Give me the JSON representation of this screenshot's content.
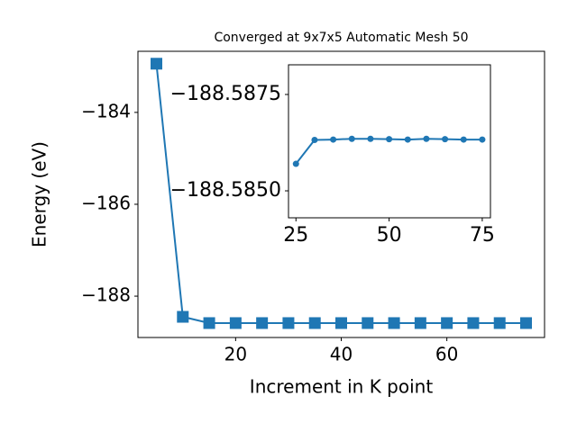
{
  "chart_data": [
    {
      "type": "line",
      "title": "Converged at 9x7x5 Automatic Mesh 50",
      "x_label": "Increment in K point",
      "y_label": "Energy (eV)",
      "marker": "square",
      "series": [
        {
          "color": "#1f77b4",
          "x": [
            5,
            10,
            15,
            20,
            25,
            30,
            35,
            40,
            45,
            50,
            55,
            60,
            65,
            70,
            75
          ],
          "values": [
            -182.94,
            -188.45,
            -188.586,
            -188.586,
            -188.586,
            -188.586,
            -188.586,
            -188.586,
            -188.586,
            -188.586,
            -188.586,
            -188.586,
            -188.586,
            -188.586,
            -188.586
          ]
        }
      ],
      "xlim": [
        1.5,
        78.5
      ],
      "xticks": [
        20,
        40,
        60
      ],
      "ylim": [
        -188.9,
        -182.67
      ],
      "yticks": [
        {
          "value": -188,
          "label": "−188"
        },
        {
          "value": -186,
          "label": "−186"
        },
        {
          "value": -184,
          "label": "−184"
        }
      ]
    },
    {
      "type": "line",
      "marker": "circle",
      "series": [
        {
          "color": "#1f77b4",
          "x": [
            25,
            30,
            35,
            40,
            45,
            50,
            55,
            60,
            65,
            70,
            75
          ],
          "values": [
            -188.5857,
            -188.58632,
            -188.58633,
            -188.58635,
            -188.58635,
            -188.58634,
            -188.58633,
            -188.58635,
            -188.58634,
            -188.58633,
            -188.58633
          ]
        }
      ],
      "xlim": [
        23,
        77.2
      ],
      "xticks": [
        25,
        50,
        75
      ],
      "ylim": [
        -188.5843,
        -188.58827
      ],
      "yticks": [
        {
          "value": -188.585,
          "label": "−188.5850"
        },
        {
          "value": -188.5875,
          "label": "−188.5875"
        }
      ]
    }
  ]
}
